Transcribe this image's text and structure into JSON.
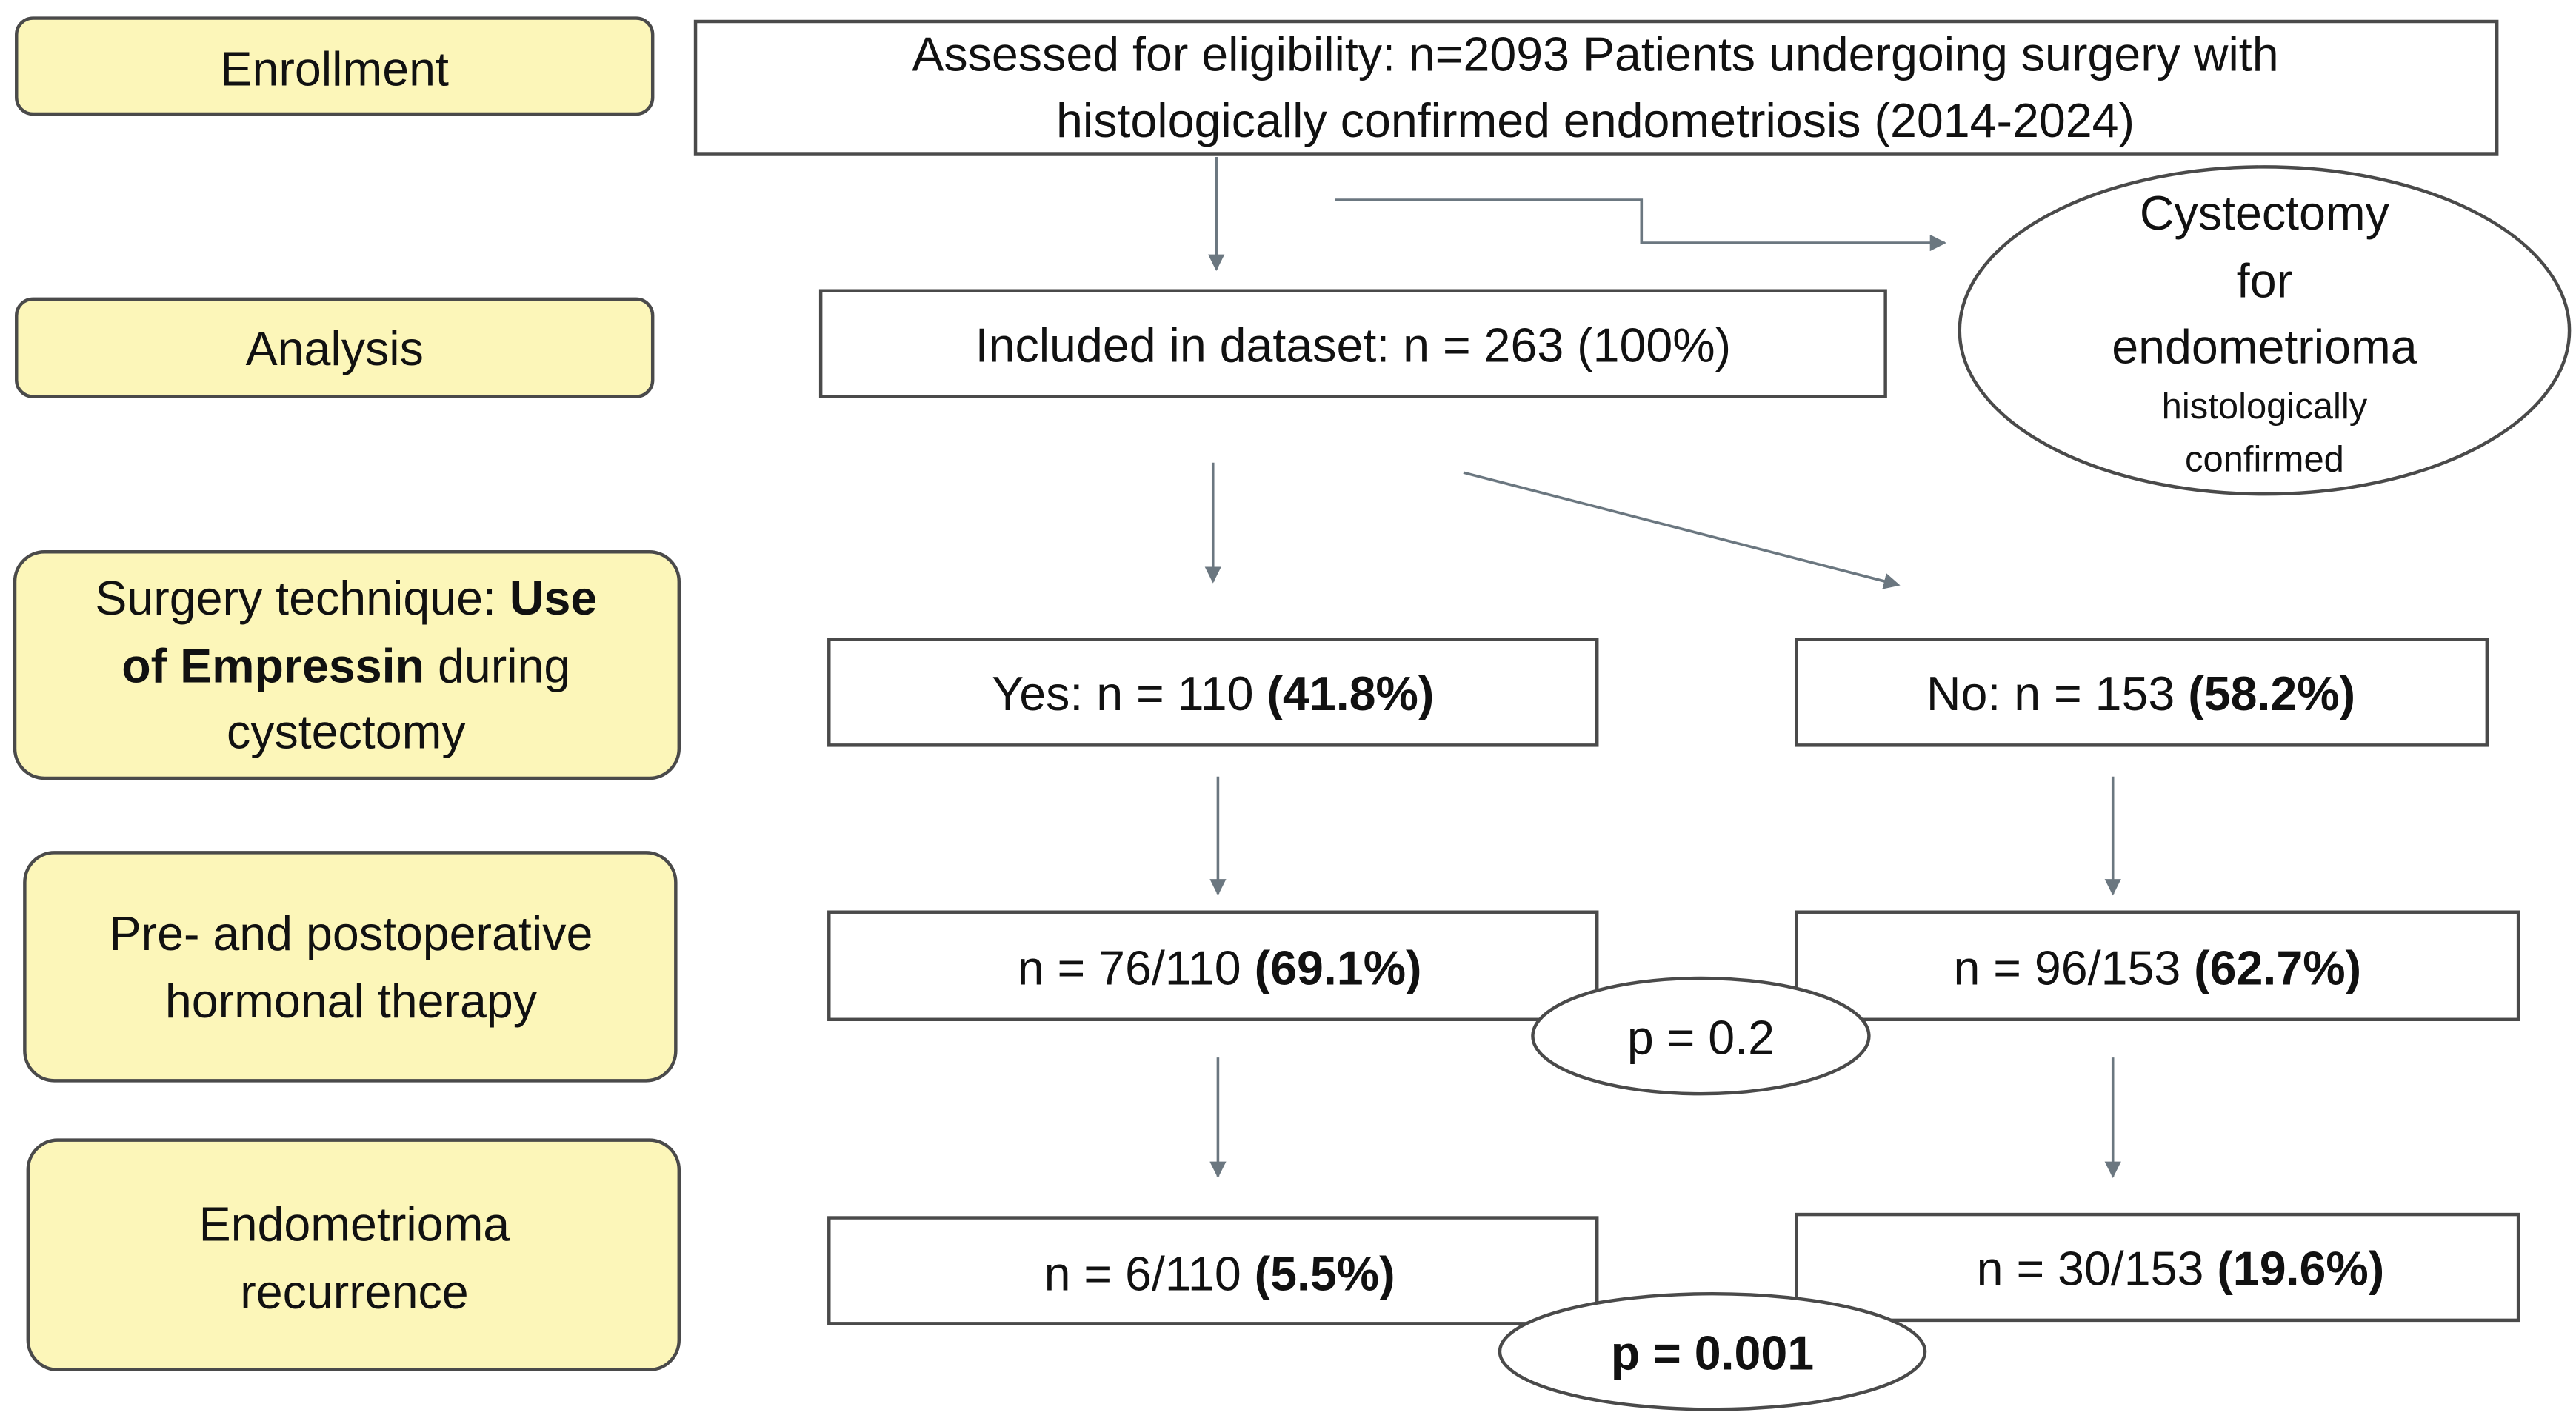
{
  "stages": {
    "enrollment": "Enrollment",
    "analysis": "Analysis",
    "technique": [
      "Surgery technique:",
      "Use",
      "of Empressin",
      "during",
      "cystectomy"
    ],
    "therapy": [
      "Pre- and postoperative",
      "hormonal therapy"
    ],
    "recurrence": [
      "Endometrioma",
      "recurrence"
    ]
  },
  "assessed": [
    "Assessed for eligibility: n=2093 Patients undergoing surgery with",
    "histologically confirmed endometriosis (2014-2024)"
  ],
  "excluded": [
    "Cystectomy",
    "for",
    "endometrioma",
    "histologically",
    "confirmed"
  ],
  "included": "Included in dataset: n = 263 (100%)",
  "yes": {
    "count": "Yes: n = 110",
    "percent": "(41.8%)"
  },
  "no": {
    "count": "No: n = 153",
    "percent": "(58.2%)"
  },
  "therapy_yes": {
    "count": "n = 76/110",
    "percent": "(69.1%)"
  },
  "therapy_no": {
    "count": "n = 96/153",
    "percent": "(62.7%)"
  },
  "p_therapy": "p = 0.2",
  "recurrence_yes": {
    "count": "n = 6/110",
    "percent": "(5.5%)"
  },
  "recurrence_no": {
    "count": "n = 30/153",
    "percent": "(19.6%)"
  },
  "p_recurrence": "p = 0.001"
}
